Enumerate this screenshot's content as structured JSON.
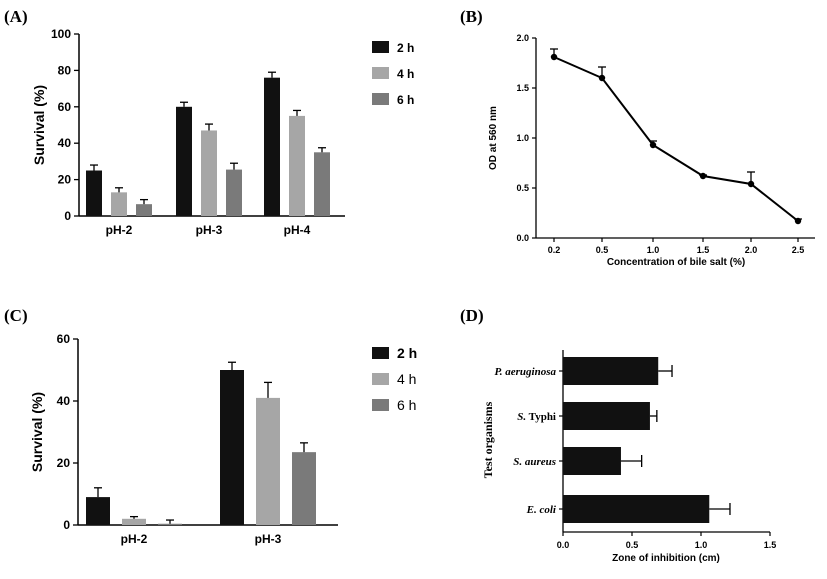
{
  "chart_data": [
    {
      "panel": "(A)",
      "type": "bar",
      "categories": [
        "pH-2",
        "pH-3",
        "pH-4"
      ],
      "series": [
        {
          "name": "2 h",
          "values": [
            25,
            60,
            76
          ],
          "errors": [
            3,
            2.5,
            3
          ],
          "color": "#111111"
        },
        {
          "name": "4 h",
          "values": [
            13,
            47,
            55
          ],
          "errors": [
            2.5,
            3.5,
            3
          ],
          "color": "#a6a6a6"
        },
        {
          "name": "6 h",
          "values": [
            6.5,
            25.5,
            35
          ],
          "errors": [
            2.5,
            3.5,
            2.5
          ],
          "color": "#7a7a7a"
        }
      ],
      "ylabel": "Survival (%)",
      "ylim": [
        0,
        100
      ],
      "yticks": [
        "0",
        "20",
        "40",
        "60",
        "80",
        "100"
      ],
      "legend": "right"
    },
    {
      "panel": "(B)",
      "type": "line",
      "x": [
        0.2,
        0.5,
        1.0,
        1.5,
        2.0,
        2.5
      ],
      "xticks": [
        "0.2",
        "0.5",
        "1.0",
        "1.5",
        "2.0",
        "2.5"
      ],
      "values": [
        1.81,
        1.6,
        0.93,
        0.62,
        0.54,
        0.17
      ],
      "errors": [
        0.08,
        0.11,
        0.04,
        0.01,
        0.12,
        0.02
      ],
      "xlabel": "Concentration of bile salt (%)",
      "ylabel": "OD at 560 nm",
      "ylim": [
        0,
        2.0
      ],
      "yticks": [
        "0.0",
        "0.5",
        "1.0",
        "1.5",
        "2.0"
      ]
    },
    {
      "panel": "(C)",
      "type": "bar",
      "categories": [
        "pH-2",
        "pH-3"
      ],
      "series": [
        {
          "name": "2 h",
          "values": [
            9,
            50
          ],
          "errors": [
            3,
            2.5
          ],
          "color": "#111111"
        },
        {
          "name": "4 h",
          "values": [
            2,
            41
          ],
          "errors": [
            0.7,
            5
          ],
          "color": "#a6a6a6"
        },
        {
          "name": "6 h",
          "values": [
            0.4,
            23.5
          ],
          "errors": [
            1.2,
            3
          ],
          "color": "#7a7a7a"
        }
      ],
      "ylabel": "Survival (%)",
      "ylim": [
        0,
        60
      ],
      "yticks": [
        "0",
        "20",
        "40",
        "60"
      ],
      "legend": "right"
    },
    {
      "panel": "(D)",
      "type": "bar",
      "orientation": "horizontal",
      "categories": [
        "P. aeruginosa",
        "S. Typhi",
        "S. aureus",
        "E. coli"
      ],
      "category_labels": [
        [
          {
            "text": "P. aeruginosa",
            "italic": true
          }
        ],
        [
          {
            "text": "S.",
            "italic": true
          },
          {
            "text": " Typhi",
            "italic": false
          }
        ],
        [
          {
            "text": "S. aureus",
            "italic": true
          }
        ],
        [
          {
            "text": "E. coli",
            "italic": true
          }
        ]
      ],
      "values": [
        0.69,
        0.63,
        0.42,
        1.06
      ],
      "errors": [
        0.1,
        0.05,
        0.15,
        0.15
      ],
      "color": "#111111",
      "xlabel": "Zone of inhibition (cm)",
      "ylabel": "Test organisms",
      "xlim": [
        0,
        1.5
      ],
      "xticks": [
        "0.0",
        "0.5",
        "1.0",
        "1.5"
      ]
    }
  ]
}
